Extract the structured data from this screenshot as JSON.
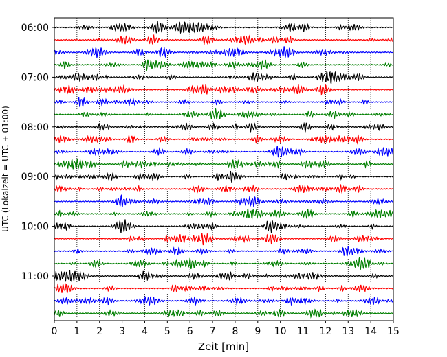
{
  "chart_data": {
    "type": "line",
    "title": "",
    "xlabel": "Zeit  [min]",
    "ylabel": "UTC (Lokalzeit = UTC + 01:00)",
    "xlim": [
      0,
      15
    ],
    "x_ticks": [
      "0",
      "1",
      "2",
      "3",
      "4",
      "5",
      "6",
      "7",
      "8",
      "9",
      "10",
      "11",
      "12",
      "13",
      "14",
      "15"
    ],
    "y_ticks": [
      "06:00",
      "07:00",
      "08:00",
      "09:00",
      "10:00",
      "11:00"
    ],
    "grid": "vertical dotted",
    "trace_interval_min": 15,
    "trace_colors": [
      "#000000",
      "#ff0000",
      "#0000ff",
      "#007f00"
    ],
    "series": [
      {
        "start": "06:00",
        "color": "#000000"
      },
      {
        "start": "06:15",
        "color": "#ff0000"
      },
      {
        "start": "06:30",
        "color": "#0000ff"
      },
      {
        "start": "06:45",
        "color": "#007f00"
      },
      {
        "start": "07:00",
        "color": "#000000"
      },
      {
        "start": "07:15",
        "color": "#ff0000"
      },
      {
        "start": "07:30",
        "color": "#0000ff"
      },
      {
        "start": "07:45",
        "color": "#007f00"
      },
      {
        "start": "08:00",
        "color": "#000000"
      },
      {
        "start": "08:15",
        "color": "#ff0000"
      },
      {
        "start": "08:30",
        "color": "#0000ff"
      },
      {
        "start": "08:45",
        "color": "#007f00"
      },
      {
        "start": "09:00",
        "color": "#000000"
      },
      {
        "start": "09:15",
        "color": "#ff0000"
      },
      {
        "start": "09:30",
        "color": "#0000ff"
      },
      {
        "start": "09:45",
        "color": "#007f00"
      },
      {
        "start": "10:00",
        "color": "#000000"
      },
      {
        "start": "10:15",
        "color": "#ff0000"
      },
      {
        "start": "10:30",
        "color": "#0000ff"
      },
      {
        "start": "10:45",
        "color": "#007f00"
      },
      {
        "start": "11:00",
        "color": "#000000"
      },
      {
        "start": "11:15",
        "color": "#ff0000"
      },
      {
        "start": "11:30",
        "color": "#0000ff"
      },
      {
        "start": "11:45",
        "color": "#007f00"
      }
    ]
  }
}
